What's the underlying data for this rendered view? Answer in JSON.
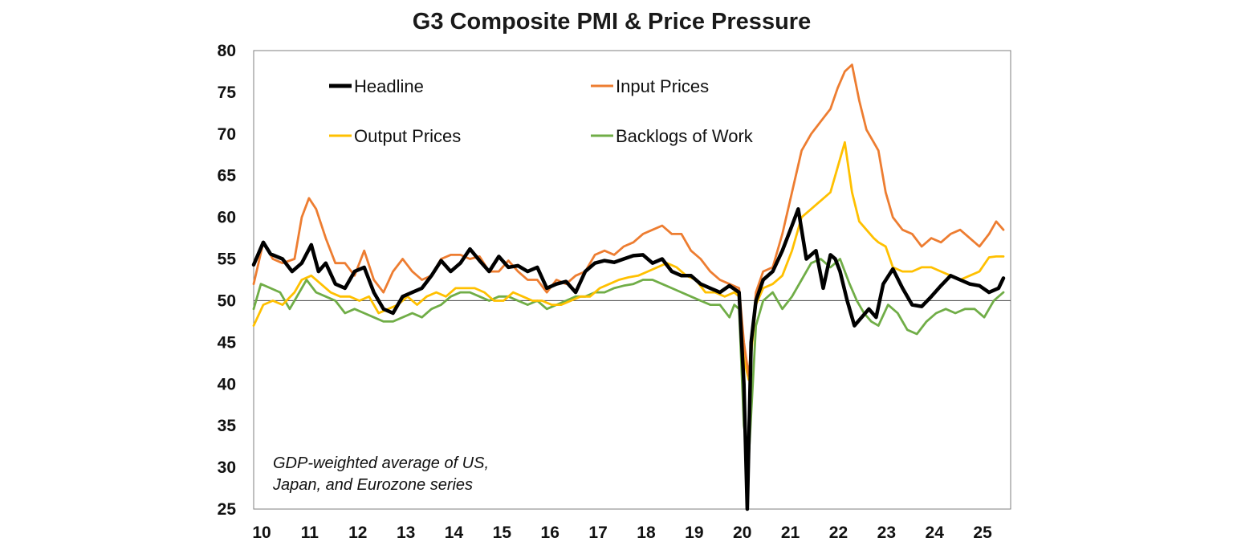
{
  "chart_data": {
    "type": "line",
    "title": "G3 Composite PMI & Price Pressure",
    "xlabel": "",
    "ylabel": "",
    "ylim": [
      25,
      80
    ],
    "xlim": [
      2010,
      2025.75
    ],
    "y_ticks": [
      "80",
      "75",
      "70",
      "65",
      "60",
      "55",
      "50",
      "45",
      "40",
      "35",
      "30",
      "25"
    ],
    "x_ticks": [
      "10",
      "11",
      "12",
      "13",
      "14",
      "15",
      "16",
      "17",
      "18",
      "19",
      "20",
      "21",
      "22",
      "23",
      "24",
      "25"
    ],
    "reference_line": 50,
    "annotation": [
      "GDP-weighted average of US,",
      "Japan, and Eurozone series"
    ],
    "series": [
      {
        "name": "Headline",
        "color": "#000000",
        "x": [
          2010.0,
          2010.2,
          2010.35,
          2010.6,
          2010.8,
          2011.0,
          2011.2,
          2011.35,
          2011.5,
          2011.7,
          2011.9,
          2012.1,
          2012.3,
          2012.5,
          2012.7,
          2012.9,
          2013.1,
          2013.3,
          2013.5,
          2013.7,
          2013.9,
          2014.1,
          2014.3,
          2014.5,
          2014.7,
          2014.9,
          2015.1,
          2015.3,
          2015.5,
          2015.7,
          2015.9,
          2016.1,
          2016.3,
          2016.5,
          2016.7,
          2016.9,
          2017.1,
          2017.3,
          2017.5,
          2017.7,
          2017.9,
          2018.1,
          2018.3,
          2018.5,
          2018.7,
          2018.9,
          2019.1,
          2019.3,
          2019.5,
          2019.7,
          2019.9,
          2020.1,
          2020.2,
          2020.27,
          2020.35,
          2020.45,
          2020.6,
          2020.8,
          2021.0,
          2021.2,
          2021.33,
          2021.5,
          2021.7,
          2021.85,
          2022.0,
          2022.1,
          2022.2,
          2022.35,
          2022.5,
          2022.65,
          2022.8,
          2022.95,
          2023.1,
          2023.3,
          2023.5,
          2023.7,
          2023.9,
          2024.1,
          2024.3,
          2024.5,
          2024.7,
          2024.9,
          2025.1,
          2025.3,
          2025.5,
          2025.6
        ],
        "values": [
          54.3,
          57.0,
          55.6,
          55.0,
          53.5,
          54.5,
          56.7,
          53.5,
          54.5,
          52.0,
          51.5,
          53.5,
          54.0,
          51.0,
          49.0,
          48.5,
          50.5,
          51.0,
          51.5,
          53.0,
          54.8,
          53.5,
          54.5,
          56.2,
          54.8,
          53.5,
          55.3,
          54.0,
          54.2,
          53.5,
          54.0,
          51.5,
          52.0,
          52.3,
          51.0,
          53.5,
          54.5,
          54.8,
          54.6,
          55.0,
          55.4,
          55.5,
          54.5,
          55.0,
          53.5,
          53.0,
          53.0,
          52.0,
          51.5,
          51.0,
          51.8,
          51.0,
          40.0,
          25.0,
          45.0,
          50.0,
          52.5,
          53.5,
          56.0,
          59.0,
          61.0,
          55.0,
          56.0,
          51.5,
          55.5,
          55.0,
          53.5,
          50.0,
          47.0,
          48.0,
          49.0,
          48.0,
          52.0,
          53.8,
          51.5,
          49.5,
          49.3,
          50.5,
          51.8,
          53.0,
          52.5,
          52.0,
          51.8,
          51.0,
          51.5,
          52.7
        ]
      },
      {
        "name": "Input Prices",
        "color": "#ed7d31",
        "x": [
          2010.0,
          2010.2,
          2010.4,
          2010.6,
          2010.85,
          2011.0,
          2011.15,
          2011.3,
          2011.5,
          2011.7,
          2011.9,
          2012.1,
          2012.3,
          2012.5,
          2012.7,
          2012.9,
          2013.1,
          2013.3,
          2013.5,
          2013.7,
          2013.9,
          2014.1,
          2014.3,
          2014.5,
          2014.7,
          2014.9,
          2015.1,
          2015.3,
          2015.5,
          2015.7,
          2015.9,
          2016.1,
          2016.3,
          2016.5,
          2016.7,
          2016.9,
          2017.1,
          2017.3,
          2017.5,
          2017.7,
          2017.9,
          2018.1,
          2018.3,
          2018.5,
          2018.7,
          2018.9,
          2019.1,
          2019.3,
          2019.5,
          2019.7,
          2019.9,
          2020.1,
          2020.2,
          2020.3,
          2020.45,
          2020.6,
          2020.8,
          2021.0,
          2021.2,
          2021.4,
          2021.6,
          2021.8,
          2022.0,
          2022.15,
          2022.3,
          2022.45,
          2022.6,
          2022.75,
          2022.9,
          2023.0,
          2023.15,
          2023.3,
          2023.5,
          2023.7,
          2023.9,
          2024.1,
          2024.3,
          2024.5,
          2024.7,
          2024.9,
          2025.1,
          2025.3,
          2025.45,
          2025.6
        ],
        "values": [
          52.0,
          57.0,
          55.0,
          54.5,
          55.0,
          60.0,
          62.3,
          61.0,
          57.5,
          54.5,
          54.5,
          53.0,
          56.0,
          52.5,
          51.0,
          53.5,
          55.0,
          53.5,
          52.5,
          53.0,
          55.0,
          55.5,
          55.5,
          55.0,
          55.3,
          53.5,
          53.5,
          54.8,
          53.5,
          52.5,
          52.5,
          51.0,
          52.5,
          52.0,
          53.0,
          53.5,
          55.5,
          56.0,
          55.5,
          56.5,
          57.0,
          58.0,
          58.5,
          59.0,
          58.0,
          58.0,
          56.0,
          55.0,
          53.5,
          52.5,
          52.0,
          51.5,
          45.0,
          41.0,
          51.0,
          53.5,
          54.0,
          58.0,
          63.0,
          68.0,
          70.0,
          71.5,
          73.0,
          75.5,
          77.5,
          78.3,
          74.0,
          70.5,
          69.0,
          68.0,
          63.0,
          60.0,
          58.5,
          58.0,
          56.5,
          57.5,
          57.0,
          58.0,
          58.5,
          57.5,
          56.5,
          58.0,
          59.5,
          58.5
        ]
      },
      {
        "name": "Output Prices",
        "color": "#ffc000",
        "x": [
          2010.0,
          2010.2,
          2010.4,
          2010.6,
          2010.85,
          2011.0,
          2011.2,
          2011.4,
          2011.6,
          2011.8,
          2012.0,
          2012.2,
          2012.4,
          2012.6,
          2012.8,
          2013.0,
          2013.2,
          2013.4,
          2013.6,
          2013.8,
          2014.0,
          2014.2,
          2014.4,
          2014.6,
          2014.8,
          2015.0,
          2015.2,
          2015.4,
          2015.6,
          2015.8,
          2016.0,
          2016.2,
          2016.4,
          2016.6,
          2016.8,
          2017.0,
          2017.2,
          2017.4,
          2017.6,
          2017.8,
          2018.0,
          2018.2,
          2018.4,
          2018.6,
          2018.8,
          2019.0,
          2019.2,
          2019.4,
          2019.6,
          2019.8,
          2020.0,
          2020.1,
          2020.2,
          2020.3,
          2020.45,
          2020.6,
          2020.8,
          2021.0,
          2021.2,
          2021.4,
          2021.6,
          2021.8,
          2022.0,
          2022.15,
          2022.3,
          2022.45,
          2022.6,
          2022.75,
          2022.9,
          2023.0,
          2023.15,
          2023.3,
          2023.5,
          2023.7,
          2023.9,
          2024.1,
          2024.3,
          2024.5,
          2024.7,
          2024.9,
          2025.1,
          2025.3,
          2025.45,
          2025.6
        ],
        "values": [
          47.0,
          49.5,
          50.0,
          49.5,
          51.0,
          52.5,
          53.0,
          52.0,
          51.0,
          50.5,
          50.5,
          50.0,
          50.5,
          48.5,
          49.0,
          49.5,
          50.5,
          49.5,
          50.5,
          51.0,
          50.5,
          51.5,
          51.5,
          51.5,
          51.0,
          50.0,
          50.0,
          51.0,
          50.5,
          50.0,
          50.0,
          49.5,
          49.5,
          50.0,
          50.5,
          50.5,
          51.5,
          52.0,
          52.5,
          52.8,
          53.0,
          53.5,
          54.0,
          54.5,
          54.0,
          53.0,
          52.5,
          51.0,
          51.0,
          50.5,
          51.0,
          50.5,
          43.0,
          40.5,
          49.5,
          51.5,
          52.0,
          53.0,
          56.0,
          60.0,
          61.0,
          62.0,
          63.0,
          66.0,
          69.0,
          63.0,
          59.5,
          58.5,
          57.5,
          57.0,
          56.5,
          54.0,
          53.5,
          53.5,
          54.0,
          54.0,
          53.5,
          53.0,
          52.5,
          53.0,
          53.5,
          55.2,
          55.3,
          55.3
        ]
      },
      {
        "name": "Backlogs of Work",
        "color": "#70ad47",
        "x": [
          2010.0,
          2010.15,
          2010.35,
          2010.55,
          2010.75,
          2010.9,
          2011.1,
          2011.3,
          2011.5,
          2011.7,
          2011.9,
          2012.1,
          2012.3,
          2012.5,
          2012.7,
          2012.9,
          2013.1,
          2013.3,
          2013.5,
          2013.7,
          2013.9,
          2014.1,
          2014.3,
          2014.5,
          2014.7,
          2014.9,
          2015.1,
          2015.3,
          2015.5,
          2015.7,
          2015.9,
          2016.1,
          2016.3,
          2016.5,
          2016.7,
          2016.9,
          2017.1,
          2017.3,
          2017.5,
          2017.7,
          2017.9,
          2018.1,
          2018.3,
          2018.5,
          2018.7,
          2018.9,
          2019.1,
          2019.3,
          2019.5,
          2019.7,
          2019.9,
          2020.0,
          2020.1,
          2020.2,
          2020.3,
          2020.45,
          2020.6,
          2020.8,
          2021.0,
          2021.2,
          2021.4,
          2021.6,
          2021.8,
          2022.0,
          2022.2,
          2022.4,
          2022.55,
          2022.7,
          2022.85,
          2023.0,
          2023.2,
          2023.4,
          2023.6,
          2023.8,
          2024.0,
          2024.2,
          2024.4,
          2024.6,
          2024.8,
          2025.0,
          2025.2,
          2025.4,
          2025.6
        ],
        "values": [
          49.0,
          52.0,
          51.5,
          51.0,
          49.0,
          50.5,
          52.5,
          51.0,
          50.5,
          50.0,
          48.5,
          49.0,
          48.5,
          48.0,
          47.5,
          47.5,
          48.0,
          48.5,
          48.0,
          49.0,
          49.5,
          50.5,
          51.0,
          51.0,
          50.5,
          50.0,
          50.5,
          50.5,
          50.0,
          49.5,
          50.0,
          49.0,
          49.5,
          50.0,
          50.5,
          50.5,
          51.0,
          51.0,
          51.5,
          51.8,
          52.0,
          52.5,
          52.5,
          52.0,
          51.5,
          51.0,
          50.5,
          50.0,
          49.5,
          49.5,
          48.0,
          49.5,
          49.0,
          35.0,
          31.0,
          47.0,
          50.0,
          51.0,
          49.0,
          50.5,
          52.5,
          54.5,
          55.0,
          54.0,
          55.0,
          52.0,
          50.0,
          48.5,
          47.5,
          47.0,
          49.5,
          48.5,
          46.5,
          46.0,
          47.5,
          48.5,
          49.0,
          48.5,
          49.0,
          49.0,
          48.0,
          50.0,
          51.0
        ]
      }
    ]
  }
}
